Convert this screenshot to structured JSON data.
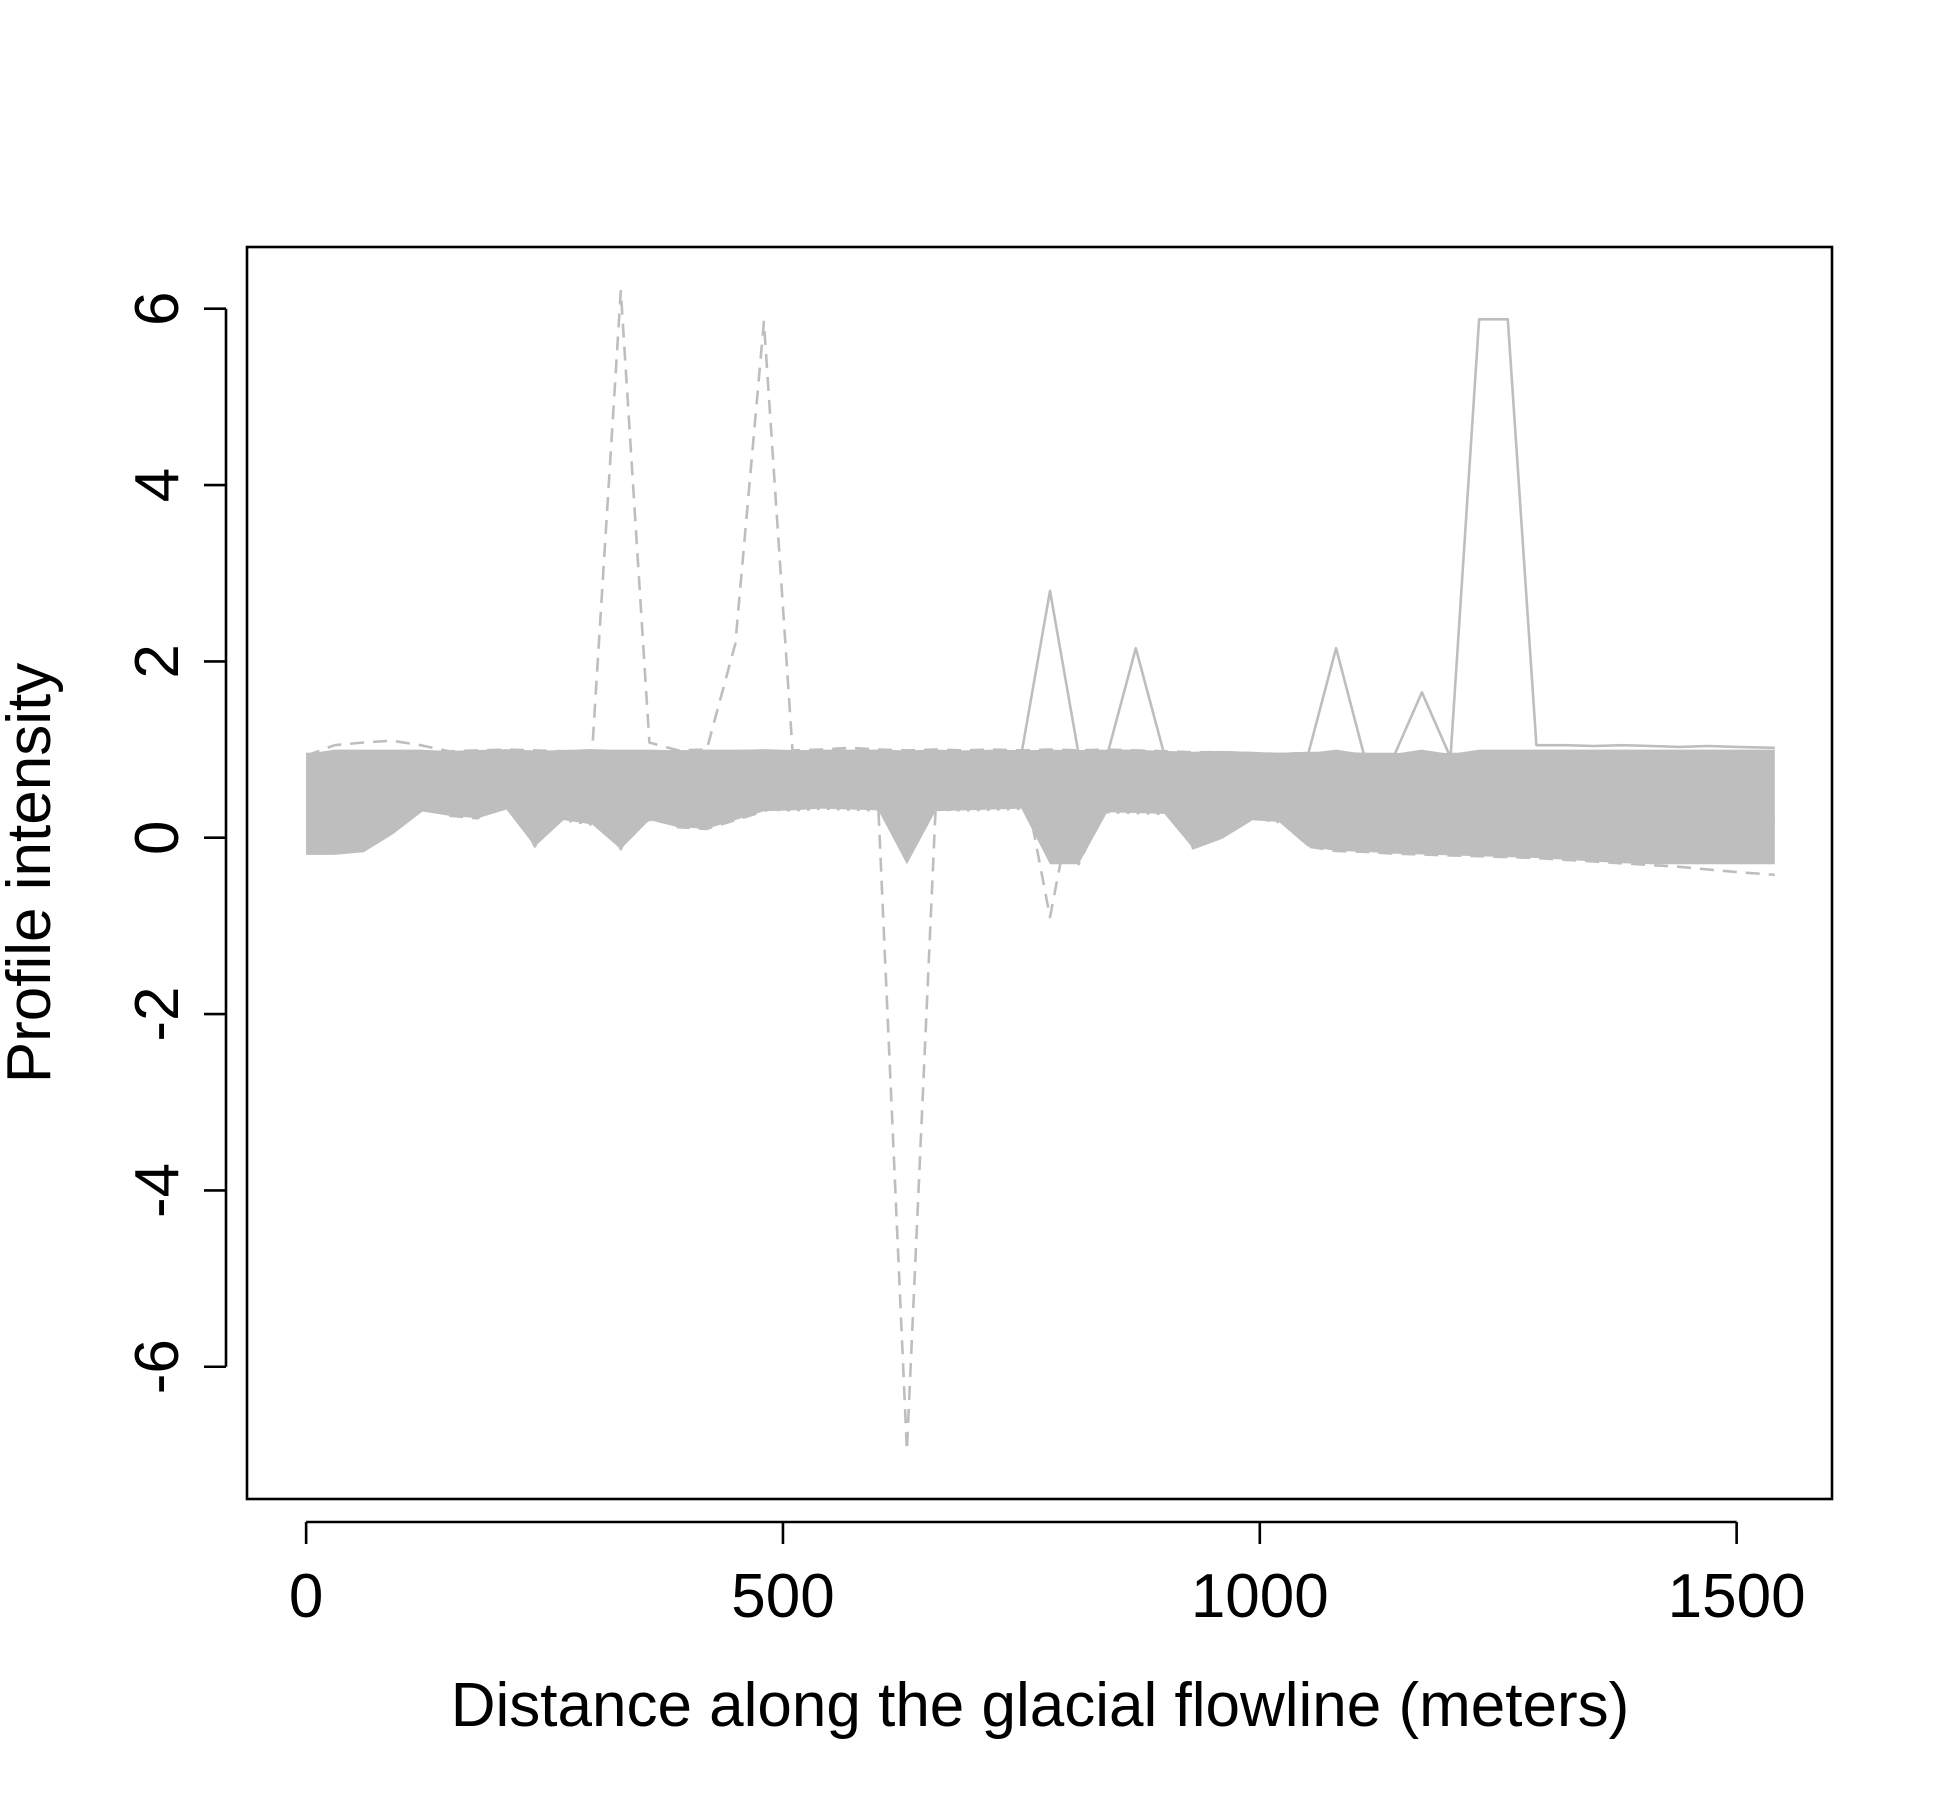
{
  "chart_data": {
    "type": "line",
    "title": "",
    "xlabel": "Distance along the glacial flowline (meters)",
    "ylabel": "Profile intensity",
    "xlim": [
      -62,
      1600
    ],
    "ylim": [
      -7.5,
      6.7
    ],
    "x_ticks": [
      0,
      500,
      1000,
      1500
    ],
    "y_ticks": [
      -6,
      -4,
      -2,
      0,
      2,
      4,
      6
    ],
    "x_tick_labels": [
      "0",
      "500",
      "1000",
      "1500"
    ],
    "y_tick_labels": [
      "-6",
      "-4",
      "-2",
      "0",
      "2",
      "4",
      "6"
    ],
    "grid": false,
    "legend": "none",
    "line_color": "#bebebe",
    "x": [
      0,
      30,
      60,
      90,
      120,
      150,
      180,
      210,
      240,
      270,
      300,
      330,
      360,
      390,
      420,
      450,
      480,
      510,
      540,
      570,
      600,
      630,
      660,
      690,
      720,
      750,
      780,
      810,
      840,
      870,
      900,
      930,
      960,
      990,
      1020,
      1050,
      1080,
      1110,
      1140,
      1170,
      1200,
      1230,
      1260,
      1290,
      1320,
      1350,
      1380,
      1410,
      1440,
      1470,
      1500,
      1540
    ],
    "series": [
      {
        "style": "solid",
        "values": [
          0.95,
          0.96,
          0.97,
          0.98,
          0.98,
          0.97,
          0.98,
          0.99,
          0.97,
          0.98,
          0.99,
          0.98,
          0.97,
          0.98,
          0.97,
          0.98,
          0.99,
          0.98,
          0.97,
          0.98,
          0.98,
          0.97,
          0.98,
          0.97,
          0.98,
          0.98,
          0.97,
          0.98,
          0.97,
          0.98,
          0.97,
          0.96,
          0.97,
          0.96,
          0.95,
          0.96,
          0.96,
          0.95,
          0.95,
          0.94,
          0.95,
          0.95,
          0.94,
          0.94,
          0.95,
          0.94,
          0.95,
          0.94,
          0.94,
          0.95,
          0.94,
          0.93
        ]
      },
      {
        "style": "solid",
        "values": [
          0.75,
          0.8,
          0.85,
          0.9,
          0.92,
          0.9,
          0.91,
          0.92,
          0.9,
          0.91,
          0.92,
          0.9,
          0.89,
          0.9,
          0.91,
          0.9,
          0.9,
          0.91,
          0.9,
          0.89,
          0.9,
          0.9,
          0.91,
          0.9,
          0.89,
          0.9,
          0.9,
          0.89,
          0.88,
          0.89,
          0.88,
          0.87,
          0.86,
          0.86,
          0.84,
          0.78,
          0.72,
          0.7,
          0.69,
          0.68,
          0.68,
          0.67,
          0.66,
          0.66,
          0.65,
          0.65,
          0.64,
          0.64,
          0.63,
          0.63,
          0.62,
          0.62
        ]
      },
      {
        "style": "solid",
        "values": [
          0.5,
          0.6,
          0.7,
          0.8,
          0.85,
          0.84,
          0.82,
          0.8,
          0.81,
          0.8,
          0.79,
          0.8,
          0.81,
          0.8,
          0.79,
          0.8,
          0.81,
          0.8,
          0.79,
          0.8,
          0.8,
          0.79,
          0.8,
          0.8,
          0.79,
          0.8,
          0.79,
          0.8,
          0.8,
          0.79,
          0.78,
          0.77,
          0.76,
          0.74,
          0.7,
          0.58,
          0.48,
          0.46,
          0.45,
          0.44,
          0.44,
          0.43,
          0.42,
          0.42,
          0.41,
          0.41,
          0.4,
          0.4,
          0.39,
          0.39,
          0.38,
          0.38
        ]
      },
      {
        "style": "solid",
        "values": [
          0.25,
          0.32,
          0.45,
          0.6,
          0.72,
          0.74,
          0.72,
          0.71,
          0.72,
          0.71,
          0.7,
          0.71,
          0.7,
          0.71,
          0.7,
          0.69,
          0.7,
          0.71,
          0.7,
          0.69,
          0.7,
          0.7,
          0.69,
          0.7,
          0.7,
          0.69,
          0.7,
          0.69,
          0.69,
          0.68,
          0.67,
          0.66,
          0.65,
          0.63,
          0.58,
          0.42,
          0.28,
          0.26,
          0.25,
          0.24,
          0.23,
          0.23,
          0.22,
          0.22,
          0.21,
          0.2,
          0.2,
          0.19,
          0.19,
          0.18,
          0.18,
          0.17
        ]
      },
      {
        "style": "solid",
        "values": [
          0.05,
          0.1,
          0.2,
          0.35,
          0.55,
          0.66,
          0.64,
          0.63,
          0.64,
          0.63,
          0.62,
          0.63,
          0.62,
          0.63,
          0.62,
          0.61,
          0.62,
          0.62,
          0.61,
          0.62,
          0.61,
          0.62,
          0.61,
          0.61,
          0.62,
          0.61,
          0.6,
          0.61,
          0.6,
          0.59,
          0.58,
          0.57,
          0.56,
          0.54,
          0.48,
          0.3,
          0.12,
          0.1,
          0.09,
          0.08,
          0.08,
          0.07,
          0.06,
          0.06,
          0.05,
          0.05,
          0.04,
          0.04,
          0.03,
          0.03,
          0.02,
          0.02
        ]
      },
      {
        "style": "solid",
        "values": [
          -0.18,
          -0.18,
          -0.15,
          0.05,
          0.3,
          0.5,
          0.55,
          0.56,
          0.55,
          0.54,
          0.55,
          0.54,
          0.55,
          0.54,
          0.53,
          0.54,
          0.55,
          0.54,
          0.53,
          0.54,
          0.54,
          0.53,
          0.54,
          0.53,
          0.52,
          0.53,
          0.52,
          0.53,
          0.52,
          0.51,
          0.5,
          0.49,
          0.48,
          0.46,
          0.4,
          0.15,
          -0.12,
          -0.14,
          -0.15,
          -0.16,
          -0.17,
          -0.18,
          -0.19,
          -0.2,
          -0.21,
          -0.22,
          -0.23,
          -0.23,
          -0.24,
          -0.25,
          -0.25,
          -0.26
        ]
      },
      {
        "style": "solid",
        "values": [
          0.9,
          0.92,
          0.95,
          0.97,
          0.96,
          0.95,
          0.96,
          0.97,
          0.96,
          0.95,
          0.96,
          0.97,
          0.96,
          0.95,
          0.96,
          0.95,
          0.96,
          0.97,
          0.96,
          0.95,
          0.96,
          0.95,
          0.96,
          0.95,
          0.96,
          0.95,
          2.8,
          0.95,
          0.94,
          2.15,
          0.94,
          0.93,
          0.93,
          0.92,
          0.92,
          0.92,
          2.15,
          0.91,
          0.91,
          1.65,
          0.91,
          5.88,
          5.88,
          1.05,
          1.05,
          1.04,
          1.05,
          1.04,
          1.03,
          1.04,
          1.03,
          1.02
        ]
      },
      {
        "style": "solid",
        "values": [
          0.6,
          0.7,
          0.78,
          0.85,
          0.88,
          0.87,
          0.86,
          0.85,
          0.86,
          0.85,
          0.84,
          0.85,
          0.84,
          0.85,
          0.84,
          0.83,
          0.84,
          0.84,
          0.83,
          0.84,
          0.84,
          0.83,
          0.84,
          0.83,
          0.83,
          0.82,
          0.83,
          0.82,
          0.82,
          0.81,
          0.8,
          -0.12,
          0.0,
          0.2,
          0.55,
          0.35,
          0.3,
          0.29,
          0.28,
          0.28,
          0.27,
          0.27,
          0.26,
          0.25,
          0.25,
          0.24,
          0.24,
          0.23,
          0.23,
          0.22,
          0.22,
          0.21
        ]
      },
      {
        "style": "dashed",
        "values": [
          0.93,
          1.05,
          1.08,
          1.1,
          1.05,
          0.98,
          0.99,
          1.0,
          0.99,
          0.98,
          0.99,
          6.2,
          1.08,
          0.99,
          1.0,
          2.2,
          5.85,
          0.99,
          1.0,
          1.02,
          1.0,
          0.99,
          1.0,
          0.99,
          1.0,
          0.99,
          1.0,
          0.99,
          1.0,
          0.99,
          0.98,
          0.97,
          0.97,
          0.96,
          0.95,
          0.96,
          0.95,
          0.95,
          0.94,
          0.95,
          0.94,
          0.94,
          0.95,
          0.94,
          0.94,
          0.93,
          0.94,
          0.93,
          0.94,
          0.93,
          0.93,
          0.92
        ]
      },
      {
        "style": "dashed",
        "values": [
          0.7,
          0.75,
          0.8,
          0.85,
          0.86,
          0.84,
          0.82,
          0.83,
          0.82,
          0.81,
          0.82,
          0.81,
          0.82,
          0.81,
          0.8,
          0.81,
          0.8,
          0.81,
          0.8,
          0.79,
          0.35,
          -6.95,
          0.3,
          0.8,
          0.79,
          0.8,
          -0.9,
          0.78,
          0.79,
          0.78,
          0.77,
          0.76,
          0.75,
          0.73,
          0.7,
          0.55,
          0.42,
          0.4,
          0.38,
          0.37,
          0.36,
          0.35,
          0.34,
          0.33,
          0.32,
          0.31,
          0.3,
          0.29,
          0.28,
          0.27,
          0.26,
          0.25
        ]
      },
      {
        "style": "dashed",
        "values": [
          0.1,
          0.15,
          0.25,
          0.4,
          0.55,
          0.25,
          0.22,
          0.5,
          -0.1,
          0.5,
          0.52,
          -0.13,
          0.55,
          0.12,
          0.1,
          0.2,
          0.3,
          0.45,
          0.42,
          0.44,
          0.43,
          0.42,
          0.43,
          0.42,
          0.41,
          0.42,
          0.4,
          -0.3,
          0.4,
          0.39,
          0.38,
          0.37,
          0.36,
          0.34,
          0.3,
          -0.1,
          -0.15,
          -0.16,
          -0.18,
          -0.19,
          -0.2,
          -0.21,
          -0.22,
          -0.23,
          -0.25,
          -0.27,
          -0.29,
          -0.31,
          -0.33,
          -0.36,
          -0.39,
          -0.42
        ]
      },
      {
        "style": "dotted",
        "values": [
          0.35,
          0.4,
          0.45,
          0.5,
          0.45,
          0.3,
          0.35,
          0.32,
          0.33,
          0.2,
          0.15,
          0.14,
          0.2,
          0.25,
          0.22,
          0.3,
          0.32,
          0.31,
          0.33,
          0.32,
          0.31,
          0.33,
          0.32,
          0.31,
          0.32,
          0.33,
          0.31,
          0.3,
          0.29,
          0.28,
          0.27,
          0.26,
          0.25,
          0.22,
          0.18,
          0.05,
          -0.05,
          -0.06,
          -0.07,
          -0.08,
          -0.09,
          -0.1,
          -0.1,
          -0.11,
          -0.12,
          -0.12,
          -0.13,
          -0.13,
          -0.14,
          -0.14,
          -0.15,
          -0.15
        ]
      },
      {
        "style": "dotdash",
        "values": [
          0.45,
          0.5,
          0.55,
          0.6,
          0.58,
          0.4,
          0.45,
          0.5,
          0.48,
          0.46,
          0.44,
          0.45,
          0.46,
          0.45,
          0.44,
          0.43,
          0.44,
          0.45,
          0.44,
          0.43,
          0.44,
          0.43,
          0.44,
          0.43,
          0.42,
          0.43,
          0.42,
          0.41,
          0.42,
          0.41,
          0.4,
          0.39,
          0.38,
          0.36,
          0.32,
          0.15,
          0.02,
          0.0,
          -0.01,
          -0.02,
          -0.03,
          -0.04,
          -0.05,
          -0.06,
          -0.07,
          -0.08,
          -0.09,
          -0.1,
          -0.11,
          -0.12,
          -0.13,
          -0.14
        ]
      }
    ]
  }
}
